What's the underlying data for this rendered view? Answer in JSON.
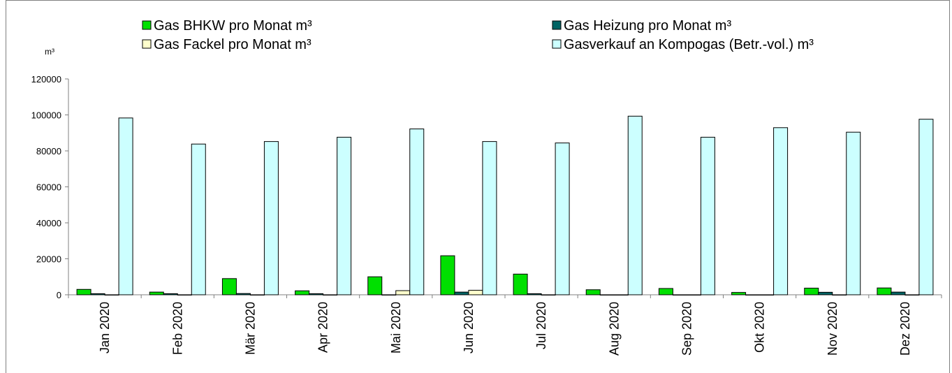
{
  "chart_data": {
    "type": "bar",
    "ylabel": "m³",
    "ylim": [
      0,
      120000
    ],
    "yticks": [
      0,
      20000,
      40000,
      60000,
      80000,
      100000,
      120000
    ],
    "grid": false,
    "legend_position": "top",
    "categories": [
      "Jan 2020",
      "Feb 2020",
      "Mär 2020",
      "Apr 2020",
      "Mai 2020",
      "Jun 2020",
      "Jul 2020",
      "Aug 2020",
      "Sep 2020",
      "Okt 2020",
      "Nov 2020",
      "Dez 2020"
    ],
    "series": [
      {
        "name": "Gas BHKW pro Monat m³",
        "color": "#00e000",
        "values": [
          3000,
          1500,
          9000,
          2200,
          10000,
          21700,
          11500,
          2800,
          3500,
          1300,
          3700,
          3800
        ]
      },
      {
        "name": "Gas Heizung pro Monat m³",
        "color": "#006464",
        "values": [
          600,
          600,
          700,
          600,
          0,
          1500,
          600,
          0,
          0,
          0,
          1400,
          1500
        ]
      },
      {
        "name": "Gas Fackel pro Monat m³",
        "color": "#ffffcc",
        "values": [
          0,
          0,
          0,
          0,
          2300,
          2500,
          0,
          0,
          0,
          0,
          0,
          0
        ]
      },
      {
        "name": "Gasverkauf an Kompogas (Betr.-vol.) m³",
        "color": "#ccffff",
        "values": [
          98300,
          83800,
          85200,
          87600,
          92200,
          85200,
          84400,
          99300,
          87600,
          92900,
          90400,
          97600
        ]
      }
    ]
  }
}
